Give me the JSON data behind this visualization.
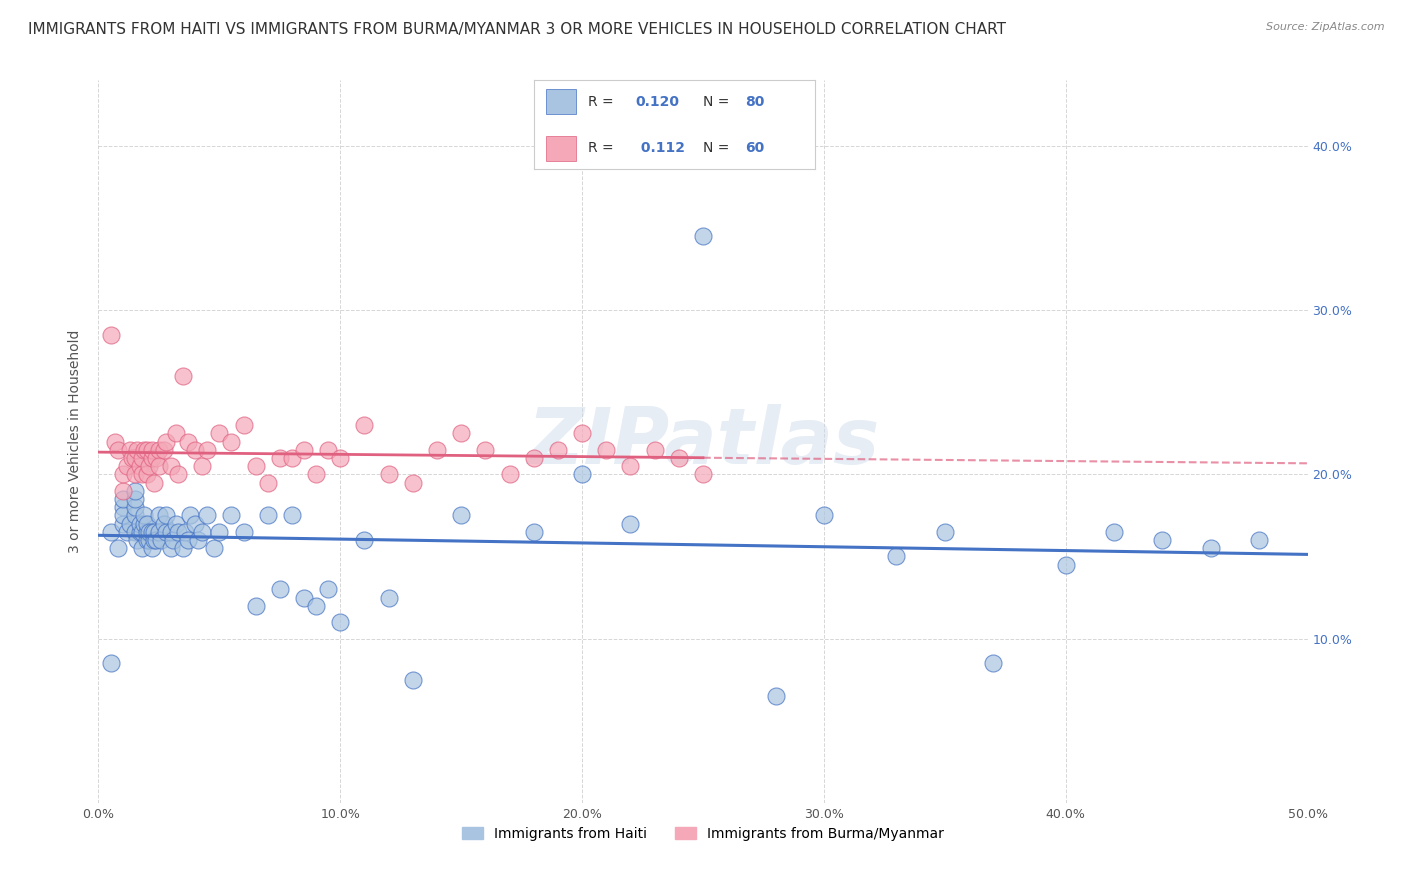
{
  "title": "IMMIGRANTS FROM HAITI VS IMMIGRANTS FROM BURMA/MYANMAR 3 OR MORE VEHICLES IN HOUSEHOLD CORRELATION CHART",
  "source": "Source: ZipAtlas.com",
  "ylabel": "3 or more Vehicles in Household",
  "xlim": [
    0.0,
    0.5
  ],
  "ylim": [
    0.0,
    0.44
  ],
  "xticks": [
    0.0,
    0.1,
    0.2,
    0.3,
    0.4,
    0.5
  ],
  "xticklabels": [
    "0.0%",
    "10.0%",
    "20.0%",
    "30.0%",
    "40.0%",
    "50.0%"
  ],
  "yticks": [
    0.1,
    0.2,
    0.3,
    0.4
  ],
  "yticklabels": [
    "10.0%",
    "20.0%",
    "30.0%",
    "40.0%"
  ],
  "haiti_color": "#a8c4e0",
  "burma_color": "#f4a8b8",
  "haiti_line_color": "#4472c4",
  "burma_line_color": "#e06080",
  "haiti_R": 0.12,
  "haiti_N": 80,
  "burma_R": 0.112,
  "burma_N": 60,
  "legend_label_haiti": "Immigrants from Haiti",
  "legend_label_burma": "Immigrants from Burma/Myanmar",
  "watermark": "ZIPatlas",
  "grid_color": "#cccccc",
  "background_color": "#ffffff",
  "title_fontsize": 11,
  "axis_label_fontsize": 10,
  "tick_fontsize": 9,
  "haiti_x": [
    0.005,
    0.005,
    0.008,
    0.01,
    0.01,
    0.01,
    0.01,
    0.012,
    0.013,
    0.015,
    0.015,
    0.015,
    0.015,
    0.015,
    0.016,
    0.017,
    0.017,
    0.018,
    0.018,
    0.019,
    0.019,
    0.02,
    0.02,
    0.02,
    0.021,
    0.021,
    0.022,
    0.022,
    0.023,
    0.023,
    0.024,
    0.025,
    0.025,
    0.026,
    0.027,
    0.028,
    0.028,
    0.03,
    0.03,
    0.031,
    0.032,
    0.033,
    0.035,
    0.036,
    0.037,
    0.038,
    0.04,
    0.041,
    0.043,
    0.045,
    0.048,
    0.05,
    0.055,
    0.06,
    0.065,
    0.07,
    0.075,
    0.08,
    0.085,
    0.09,
    0.095,
    0.1,
    0.11,
    0.12,
    0.13,
    0.15,
    0.18,
    0.2,
    0.22,
    0.25,
    0.28,
    0.3,
    0.33,
    0.35,
    0.37,
    0.4,
    0.42,
    0.44,
    0.46,
    0.48
  ],
  "haiti_y": [
    0.085,
    0.165,
    0.155,
    0.17,
    0.18,
    0.175,
    0.185,
    0.165,
    0.17,
    0.165,
    0.175,
    0.18,
    0.185,
    0.19,
    0.16,
    0.165,
    0.17,
    0.155,
    0.165,
    0.17,
    0.175,
    0.16,
    0.165,
    0.17,
    0.16,
    0.165,
    0.155,
    0.165,
    0.16,
    0.165,
    0.16,
    0.175,
    0.165,
    0.16,
    0.17,
    0.165,
    0.175,
    0.155,
    0.165,
    0.16,
    0.17,
    0.165,
    0.155,
    0.165,
    0.16,
    0.175,
    0.17,
    0.16,
    0.165,
    0.175,
    0.155,
    0.165,
    0.175,
    0.165,
    0.12,
    0.175,
    0.13,
    0.175,
    0.125,
    0.12,
    0.13,
    0.11,
    0.16,
    0.125,
    0.075,
    0.175,
    0.165,
    0.2,
    0.17,
    0.345,
    0.065,
    0.175,
    0.15,
    0.165,
    0.085,
    0.145,
    0.165,
    0.16,
    0.155,
    0.16
  ],
  "burma_x": [
    0.005,
    0.007,
    0.008,
    0.01,
    0.01,
    0.012,
    0.013,
    0.014,
    0.015,
    0.015,
    0.016,
    0.017,
    0.018,
    0.018,
    0.019,
    0.02,
    0.02,
    0.021,
    0.022,
    0.022,
    0.023,
    0.024,
    0.025,
    0.025,
    0.027,
    0.028,
    0.03,
    0.032,
    0.033,
    0.035,
    0.037,
    0.04,
    0.043,
    0.045,
    0.05,
    0.055,
    0.06,
    0.065,
    0.07,
    0.075,
    0.08,
    0.085,
    0.09,
    0.095,
    0.1,
    0.11,
    0.12,
    0.13,
    0.14,
    0.15,
    0.16,
    0.17,
    0.18,
    0.19,
    0.2,
    0.21,
    0.22,
    0.23,
    0.24,
    0.25
  ],
  "burma_y": [
    0.285,
    0.22,
    0.215,
    0.19,
    0.2,
    0.205,
    0.215,
    0.21,
    0.2,
    0.21,
    0.215,
    0.205,
    0.2,
    0.21,
    0.215,
    0.2,
    0.215,
    0.205,
    0.21,
    0.215,
    0.195,
    0.21,
    0.215,
    0.205,
    0.215,
    0.22,
    0.205,
    0.225,
    0.2,
    0.26,
    0.22,
    0.215,
    0.205,
    0.215,
    0.225,
    0.22,
    0.23,
    0.205,
    0.195,
    0.21,
    0.21,
    0.215,
    0.2,
    0.215,
    0.21,
    0.23,
    0.2,
    0.195,
    0.215,
    0.225,
    0.215,
    0.2,
    0.21,
    0.215,
    0.225,
    0.215,
    0.205,
    0.215,
    0.21,
    0.2
  ]
}
